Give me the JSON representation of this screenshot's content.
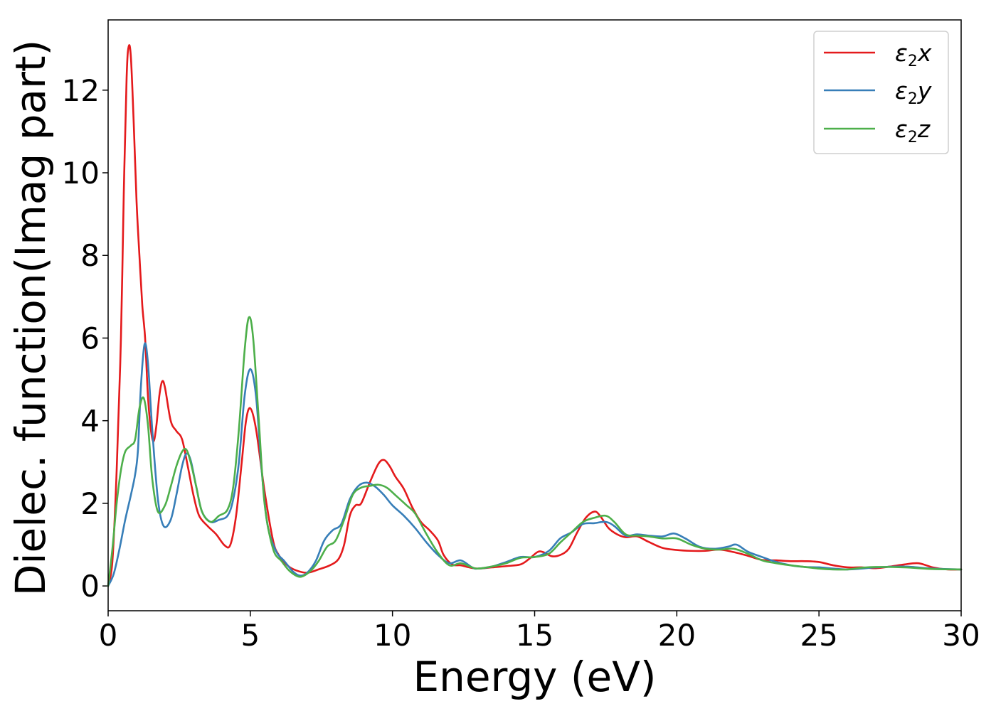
{
  "chart_data": {
    "type": "line",
    "xlabel": "Energy (eV)",
    "ylabel": "Dielec. function(Imag part)",
    "xlim": [
      0,
      30
    ],
    "ylim": [
      -0.6,
      13.7
    ],
    "x_ticks": [
      0,
      5,
      10,
      15,
      20,
      25,
      30
    ],
    "y_ticks": [
      0,
      2,
      4,
      6,
      8,
      10,
      12
    ],
    "grid": false,
    "legend_position": "top-right",
    "series": [
      {
        "name": "ε2x",
        "legend_symbol": "ε",
        "legend_subscript": "2",
        "legend_component": "x",
        "color": "#e41a1c",
        "points": [
          [
            0.0,
            0.0
          ],
          [
            0.15,
            0.6
          ],
          [
            0.3,
            2.8
          ],
          [
            0.45,
            6.0
          ],
          [
            0.55,
            9.5
          ],
          [
            0.65,
            12.3
          ],
          [
            0.72,
            13.05
          ],
          [
            0.8,
            12.8
          ],
          [
            0.9,
            11.2
          ],
          [
            1.0,
            9.3
          ],
          [
            1.1,
            8.0
          ],
          [
            1.2,
            6.8
          ],
          [
            1.3,
            6.0
          ],
          [
            1.4,
            4.6
          ],
          [
            1.5,
            3.8
          ],
          [
            1.6,
            3.5
          ],
          [
            1.7,
            3.9
          ],
          [
            1.8,
            4.6
          ],
          [
            1.9,
            4.95
          ],
          [
            2.0,
            4.8
          ],
          [
            2.2,
            4.0
          ],
          [
            2.4,
            3.75
          ],
          [
            2.6,
            3.55
          ],
          [
            2.8,
            2.9
          ],
          [
            3.0,
            2.2
          ],
          [
            3.2,
            1.7
          ],
          [
            3.5,
            1.45
          ],
          [
            3.8,
            1.25
          ],
          [
            4.1,
            0.98
          ],
          [
            4.3,
            1.0
          ],
          [
            4.5,
            1.7
          ],
          [
            4.7,
            3.0
          ],
          [
            4.85,
            4.0
          ],
          [
            5.0,
            4.3
          ],
          [
            5.2,
            3.8
          ],
          [
            5.5,
            2.3
          ],
          [
            5.8,
            1.1
          ],
          [
            6.0,
            0.75
          ],
          [
            6.3,
            0.5
          ],
          [
            6.6,
            0.38
          ],
          [
            7.0,
            0.32
          ],
          [
            7.4,
            0.4
          ],
          [
            7.8,
            0.5
          ],
          [
            8.1,
            0.65
          ],
          [
            8.3,
            1.0
          ],
          [
            8.5,
            1.7
          ],
          [
            8.7,
            1.95
          ],
          [
            8.9,
            2.0
          ],
          [
            9.2,
            2.5
          ],
          [
            9.5,
            2.95
          ],
          [
            9.7,
            3.05
          ],
          [
            9.9,
            2.9
          ],
          [
            10.1,
            2.65
          ],
          [
            10.4,
            2.35
          ],
          [
            10.7,
            1.9
          ],
          [
            11.0,
            1.55
          ],
          [
            11.3,
            1.35
          ],
          [
            11.6,
            1.1
          ],
          [
            11.8,
            0.75
          ],
          [
            12.1,
            0.52
          ],
          [
            12.4,
            0.5
          ],
          [
            12.7,
            0.45
          ],
          [
            13.0,
            0.42
          ],
          [
            13.5,
            0.45
          ],
          [
            14.0,
            0.48
          ],
          [
            14.5,
            0.52
          ],
          [
            14.8,
            0.65
          ],
          [
            15.1,
            0.82
          ],
          [
            15.3,
            0.82
          ],
          [
            15.6,
            0.72
          ],
          [
            15.9,
            0.75
          ],
          [
            16.2,
            0.9
          ],
          [
            16.5,
            1.3
          ],
          [
            16.8,
            1.65
          ],
          [
            17.1,
            1.8
          ],
          [
            17.3,
            1.7
          ],
          [
            17.6,
            1.4
          ],
          [
            17.9,
            1.25
          ],
          [
            18.2,
            1.18
          ],
          [
            18.6,
            1.2
          ],
          [
            19.0,
            1.07
          ],
          [
            19.5,
            0.92
          ],
          [
            20.0,
            0.87
          ],
          [
            20.5,
            0.85
          ],
          [
            21.0,
            0.85
          ],
          [
            21.5,
            0.88
          ],
          [
            22.0,
            0.82
          ],
          [
            22.5,
            0.73
          ],
          [
            23.0,
            0.63
          ],
          [
            23.5,
            0.62
          ],
          [
            24.0,
            0.6
          ],
          [
            24.5,
            0.6
          ],
          [
            25.0,
            0.58
          ],
          [
            25.5,
            0.5
          ],
          [
            26.0,
            0.45
          ],
          [
            26.5,
            0.45
          ],
          [
            27.0,
            0.43
          ],
          [
            27.5,
            0.47
          ],
          [
            28.0,
            0.52
          ],
          [
            28.5,
            0.55
          ],
          [
            29.0,
            0.45
          ],
          [
            29.5,
            0.4
          ],
          [
            30.0,
            0.4
          ]
        ]
      },
      {
        "name": "ε2y",
        "legend_symbol": "ε",
        "legend_subscript": "2",
        "legend_component": "y",
        "color": "#377eb8",
        "points": [
          [
            0.0,
            0.0
          ],
          [
            0.2,
            0.3
          ],
          [
            0.4,
            0.9
          ],
          [
            0.6,
            1.6
          ],
          [
            0.8,
            2.2
          ],
          [
            0.95,
            2.7
          ],
          [
            1.05,
            3.3
          ],
          [
            1.15,
            4.8
          ],
          [
            1.28,
            5.85
          ],
          [
            1.4,
            5.4
          ],
          [
            1.55,
            3.8
          ],
          [
            1.75,
            2.1
          ],
          [
            1.95,
            1.45
          ],
          [
            2.2,
            1.6
          ],
          [
            2.4,
            2.2
          ],
          [
            2.6,
            2.9
          ],
          [
            2.75,
            3.2
          ],
          [
            2.9,
            3.05
          ],
          [
            3.1,
            2.4
          ],
          [
            3.3,
            1.8
          ],
          [
            3.6,
            1.55
          ],
          [
            3.9,
            1.6
          ],
          [
            4.2,
            1.7
          ],
          [
            4.4,
            2.1
          ],
          [
            4.6,
            3.0
          ],
          [
            4.8,
            4.6
          ],
          [
            5.0,
            5.25
          ],
          [
            5.2,
            4.6
          ],
          [
            5.4,
            2.8
          ],
          [
            5.6,
            1.5
          ],
          [
            5.9,
            0.85
          ],
          [
            6.2,
            0.6
          ],
          [
            6.5,
            0.35
          ],
          [
            6.75,
            0.25
          ],
          [
            7.0,
            0.32
          ],
          [
            7.3,
            0.6
          ],
          [
            7.6,
            1.1
          ],
          [
            7.9,
            1.35
          ],
          [
            8.2,
            1.5
          ],
          [
            8.5,
            2.1
          ],
          [
            8.8,
            2.42
          ],
          [
            9.1,
            2.5
          ],
          [
            9.4,
            2.4
          ],
          [
            9.7,
            2.2
          ],
          [
            10.0,
            1.95
          ],
          [
            10.4,
            1.7
          ],
          [
            10.8,
            1.4
          ],
          [
            11.2,
            1.05
          ],
          [
            11.6,
            0.75
          ],
          [
            12.0,
            0.55
          ],
          [
            12.4,
            0.62
          ],
          [
            12.8,
            0.45
          ],
          [
            13.0,
            0.42
          ],
          [
            13.5,
            0.47
          ],
          [
            14.0,
            0.58
          ],
          [
            14.5,
            0.7
          ],
          [
            15.0,
            0.7
          ],
          [
            15.5,
            0.85
          ],
          [
            15.9,
            1.15
          ],
          [
            16.3,
            1.3
          ],
          [
            16.7,
            1.5
          ],
          [
            17.1,
            1.52
          ],
          [
            17.5,
            1.55
          ],
          [
            17.8,
            1.45
          ],
          [
            18.2,
            1.22
          ],
          [
            18.6,
            1.25
          ],
          [
            19.0,
            1.22
          ],
          [
            19.5,
            1.2
          ],
          [
            19.9,
            1.27
          ],
          [
            20.3,
            1.15
          ],
          [
            20.8,
            0.95
          ],
          [
            21.3,
            0.9
          ],
          [
            21.8,
            0.95
          ],
          [
            22.1,
            1.0
          ],
          [
            22.5,
            0.83
          ],
          [
            23.0,
            0.7
          ],
          [
            23.5,
            0.58
          ],
          [
            24.0,
            0.5
          ],
          [
            24.5,
            0.46
          ],
          [
            25.0,
            0.45
          ],
          [
            25.5,
            0.42
          ],
          [
            26.0,
            0.4
          ],
          [
            26.5,
            0.42
          ],
          [
            27.0,
            0.45
          ],
          [
            28.0,
            0.47
          ],
          [
            29.0,
            0.42
          ],
          [
            30.0,
            0.4
          ]
        ]
      },
      {
        "name": "ε2z",
        "legend_symbol": "ε",
        "legend_subscript": "2",
        "legend_component": "z",
        "color": "#4daf4a",
        "points": [
          [
            0.0,
            0.0
          ],
          [
            0.15,
            0.9
          ],
          [
            0.3,
            2.0
          ],
          [
            0.45,
            2.8
          ],
          [
            0.6,
            3.25
          ],
          [
            0.8,
            3.4
          ],
          [
            0.95,
            3.55
          ],
          [
            1.1,
            4.3
          ],
          [
            1.25,
            4.55
          ],
          [
            1.4,
            3.9
          ],
          [
            1.55,
            2.6
          ],
          [
            1.75,
            1.8
          ],
          [
            2.0,
            1.95
          ],
          [
            2.2,
            2.4
          ],
          [
            2.4,
            2.9
          ],
          [
            2.6,
            3.25
          ],
          [
            2.75,
            3.3
          ],
          [
            2.9,
            3.0
          ],
          [
            3.1,
            2.4
          ],
          [
            3.3,
            1.8
          ],
          [
            3.6,
            1.55
          ],
          [
            3.9,
            1.7
          ],
          [
            4.2,
            1.85
          ],
          [
            4.4,
            2.4
          ],
          [
            4.6,
            3.8
          ],
          [
            4.8,
            5.7
          ],
          [
            4.95,
            6.5
          ],
          [
            5.1,
            6.0
          ],
          [
            5.3,
            4.0
          ],
          [
            5.5,
            2.0
          ],
          [
            5.8,
            0.9
          ],
          [
            6.1,
            0.6
          ],
          [
            6.4,
            0.35
          ],
          [
            6.75,
            0.22
          ],
          [
            7.1,
            0.35
          ],
          [
            7.4,
            0.6
          ],
          [
            7.7,
            0.95
          ],
          [
            8.0,
            1.1
          ],
          [
            8.3,
            1.6
          ],
          [
            8.6,
            2.2
          ],
          [
            8.9,
            2.38
          ],
          [
            9.2,
            2.42
          ],
          [
            9.5,
            2.45
          ],
          [
            9.8,
            2.38
          ],
          [
            10.1,
            2.2
          ],
          [
            10.5,
            1.95
          ],
          [
            10.8,
            1.75
          ],
          [
            11.2,
            1.25
          ],
          [
            11.6,
            0.8
          ],
          [
            12.0,
            0.5
          ],
          [
            12.4,
            0.55
          ],
          [
            12.8,
            0.45
          ],
          [
            13.0,
            0.42
          ],
          [
            13.5,
            0.47
          ],
          [
            14.0,
            0.55
          ],
          [
            14.5,
            0.68
          ],
          [
            15.0,
            0.7
          ],
          [
            15.5,
            0.78
          ],
          [
            15.9,
            1.05
          ],
          [
            16.3,
            1.3
          ],
          [
            16.7,
            1.55
          ],
          [
            17.1,
            1.65
          ],
          [
            17.5,
            1.7
          ],
          [
            17.8,
            1.55
          ],
          [
            18.2,
            1.25
          ],
          [
            18.6,
            1.22
          ],
          [
            19.0,
            1.2
          ],
          [
            19.5,
            1.15
          ],
          [
            20.0,
            1.15
          ],
          [
            20.5,
            1.0
          ],
          [
            21.0,
            0.9
          ],
          [
            21.5,
            0.88
          ],
          [
            22.0,
            0.9
          ],
          [
            22.5,
            0.78
          ],
          [
            23.0,
            0.62
          ],
          [
            23.5,
            0.55
          ],
          [
            24.0,
            0.5
          ],
          [
            24.5,
            0.46
          ],
          [
            25.0,
            0.42
          ],
          [
            25.5,
            0.4
          ],
          [
            26.0,
            0.4
          ],
          [
            26.5,
            0.44
          ],
          [
            27.0,
            0.46
          ],
          [
            28.0,
            0.45
          ],
          [
            29.0,
            0.41
          ],
          [
            30.0,
            0.4
          ]
        ]
      }
    ]
  }
}
